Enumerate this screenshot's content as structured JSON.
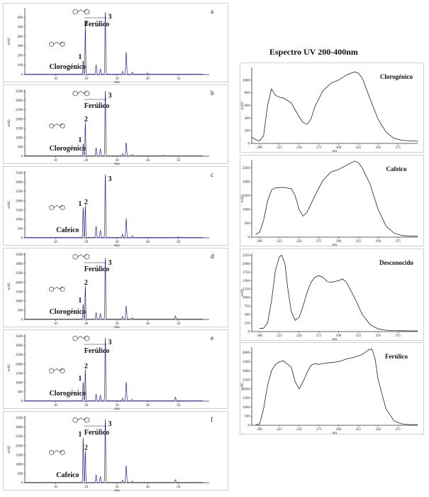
{
  "uv_title": "Espectro UV 200-400nm",
  "chart_data": [
    {
      "type": "line",
      "panel_label": "a",
      "xlabel": "min",
      "ylabel": "mAU",
      "xlim": [
        0,
        60
      ],
      "ylim": [
        0,
        700
      ],
      "x_ticks": [
        10,
        20,
        30,
        40,
        50
      ],
      "y_ticks": [
        0,
        100,
        200,
        300,
        400,
        500,
        600
      ],
      "peaks": [
        {
          "id": "1",
          "x": 19.0,
          "y": 140,
          "name": "Clorogénico"
        },
        {
          "id": "2",
          "x": 19.7,
          "y": 500
        },
        {
          "id": "3",
          "x": 26.2,
          "y": 650,
          "name": "Ferúlico"
        }
      ],
      "minor_peaks": [
        [
          23.2,
          95
        ],
        [
          24.6,
          55
        ],
        [
          33.0,
          230
        ],
        [
          31.8,
          30
        ],
        [
          35.0,
          22
        ],
        [
          40.0,
          12
        ]
      ]
    },
    {
      "type": "line",
      "panel_label": "b",
      "xlabel": "min",
      "ylabel": "mAU",
      "xlim": [
        0,
        60
      ],
      "ylim": [
        0,
        3600
      ],
      "x_ticks": [
        10,
        20,
        30,
        40,
        50
      ],
      "y_ticks": [
        0,
        500,
        1000,
        1500,
        2000,
        2500,
        3000,
        3500
      ],
      "peaks": [
        {
          "id": "1",
          "x": 19.0,
          "y": 650,
          "name": "Clorogénico"
        },
        {
          "id": "2",
          "x": 19.7,
          "y": 1800
        },
        {
          "id": "3",
          "x": 26.2,
          "y": 3500,
          "name": "Ferúlico"
        }
      ],
      "minor_peaks": [
        [
          23.2,
          420
        ],
        [
          24.6,
          380
        ],
        [
          33.0,
          700
        ],
        [
          31.8,
          120
        ],
        [
          35.0,
          80
        ],
        [
          45.0,
          30
        ]
      ]
    },
    {
      "type": "line",
      "panel_label": "c",
      "xlabel": "min",
      "ylabel": "mAU",
      "xlim": [
        0,
        60
      ],
      "ylim": [
        0,
        3600
      ],
      "x_ticks": [
        10,
        20,
        30,
        40,
        50
      ],
      "y_ticks": [
        0,
        500,
        1000,
        1500,
        2000,
        2500,
        3000,
        3500
      ],
      "peaks": [
        {
          "id": "1",
          "x": 19.0,
          "y": 1600,
          "name": "Cafeico"
        },
        {
          "id": "2",
          "x": 19.7,
          "y": 1750
        },
        {
          "id": "3",
          "x": 26.2,
          "y": 3400
        }
      ],
      "minor_peaks": [
        [
          23.2,
          600
        ],
        [
          24.6,
          380
        ],
        [
          33.0,
          1000
        ],
        [
          31.8,
          180
        ],
        [
          35.0,
          100
        ],
        [
          50.0,
          30
        ]
      ]
    },
    {
      "type": "line",
      "panel_label": "d",
      "xlabel": "min",
      "ylabel": "mAU",
      "xlim": [
        0,
        60
      ],
      "ylim": [
        0,
        3600
      ],
      "x_ticks": [
        10,
        20,
        30,
        40,
        50
      ],
      "y_ticks": [
        0,
        500,
        1000,
        1500,
        2000,
        2500,
        3000,
        3500
      ],
      "peaks": [
        {
          "id": "1",
          "x": 19.0,
          "y": 800,
          "name": "Clorogénico"
        },
        {
          "id": "2",
          "x": 19.7,
          "y": 1800
        },
        {
          "id": "3",
          "x": 26.2,
          "y": 3300,
          "name": "Ferúlico"
        }
      ],
      "minor_peaks": [
        [
          23.2,
          350
        ],
        [
          24.6,
          300
        ],
        [
          33.0,
          700
        ],
        [
          31.8,
          150
        ],
        [
          35.0,
          80
        ],
        [
          49.0,
          180
        ]
      ]
    },
    {
      "type": "line",
      "panel_label": "e",
      "xlabel": "min",
      "ylabel": "mAU",
      "xlim": [
        0,
        60
      ],
      "ylim": [
        0,
        3600
      ],
      "x_ticks": [
        10,
        20,
        30,
        40,
        50
      ],
      "y_ticks": [
        0,
        500,
        1000,
        1500,
        2000,
        2500,
        3000,
        3500
      ],
      "peaks": [
        {
          "id": "1",
          "x": 19.0,
          "y": 1000,
          "name": "Clorogénico"
        },
        {
          "id": "2",
          "x": 19.7,
          "y": 1700
        },
        {
          "id": "3",
          "x": 26.2,
          "y": 3400,
          "name": "Ferúlico"
        }
      ],
      "minor_peaks": [
        [
          23.2,
          350
        ],
        [
          24.6,
          300
        ],
        [
          33.0,
          1000
        ],
        [
          31.8,
          150
        ],
        [
          35.0,
          80
        ],
        [
          49.0,
          200
        ]
      ]
    },
    {
      "type": "line",
      "panel_label": "f",
      "xlabel": "min",
      "ylabel": "mAU",
      "xlim": [
        0,
        60
      ],
      "ylim": [
        0,
        3600
      ],
      "x_ticks": [
        10,
        20,
        30,
        40,
        50
      ],
      "y_ticks": [
        0,
        500,
        1000,
        1500,
        2000,
        2500,
        3000,
        3500
      ],
      "peaks": [
        {
          "id": "1",
          "x": 19.0,
          "y": 2400,
          "name": "Cafeico"
        },
        {
          "id": "2",
          "x": 19.7,
          "y": 1700
        },
        {
          "id": "3",
          "x": 26.2,
          "y": 3400,
          "name": "Ferúlico"
        }
      ],
      "minor_peaks": [
        [
          23.2,
          400
        ],
        [
          24.6,
          300
        ],
        [
          33.0,
          900
        ],
        [
          31.8,
          120
        ],
        [
          35.0,
          80
        ],
        [
          49.0,
          150
        ]
      ]
    },
    {
      "type": "line",
      "name": "Clorogénico",
      "xlabel": "nm",
      "ylabel": "mAU",
      "xlim": [
        190,
        400
      ],
      "ylim": [
        0,
        1200
      ],
      "x_ticks": [
        200,
        225,
        250,
        275,
        300,
        325,
        350,
        375
      ],
      "y_ticks": [
        0,
        200,
        400,
        600,
        800,
        1000
      ],
      "x": [
        190,
        195,
        200,
        205,
        210,
        215,
        220,
        225,
        230,
        240,
        250,
        255,
        260,
        265,
        270,
        280,
        290,
        300,
        310,
        320,
        325,
        330,
        340,
        350,
        360,
        370,
        380,
        390,
        400
      ],
      "y": [
        100,
        60,
        40,
        120,
        600,
        860,
        760,
        730,
        720,
        640,
        420,
        330,
        300,
        390,
        580,
        830,
        950,
        1000,
        1080,
        1130,
        1110,
        1030,
        700,
        380,
        180,
        80,
        50,
        40,
        35
      ]
    },
    {
      "type": "line",
      "name": "Cafeico",
      "xlabel": "nm",
      "ylabel": "mAU",
      "xlim": [
        190,
        400
      ],
      "ylim": [
        0,
        2800
      ],
      "x_ticks": [
        200,
        225,
        250,
        275,
        300,
        325,
        350,
        375
      ],
      "y_ticks": [
        0,
        500,
        1000,
        1500,
        2000,
        2500
      ],
      "x": [
        195,
        200,
        205,
        210,
        215,
        220,
        230,
        240,
        245,
        250,
        255,
        260,
        270,
        280,
        290,
        300,
        310,
        320,
        325,
        330,
        340,
        350,
        360,
        370,
        380,
        390,
        400
      ],
      "y": [
        100,
        180,
        600,
        1300,
        1700,
        1780,
        1800,
        1750,
        1500,
        1000,
        760,
        900,
        1500,
        2050,
        2350,
        2450,
        2600,
        2750,
        2700,
        2500,
        1900,
        1000,
        400,
        150,
        60,
        40,
        30
      ]
    },
    {
      "type": "line",
      "name": "Desconocido",
      "xlabel": "nm",
      "ylabel": "mAU",
      "xlim": [
        190,
        400
      ],
      "ylim": [
        0,
        2300
      ],
      "x_ticks": [
        200,
        225,
        250,
        275,
        300,
        325,
        350,
        375
      ],
      "y_ticks": [
        0,
        250,
        500,
        750,
        1000,
        1250,
        1500,
        1750,
        2000,
        2250
      ],
      "x": [
        200,
        205,
        210,
        215,
        220,
        225,
        228,
        232,
        236,
        240,
        245,
        250,
        255,
        260,
        265,
        270,
        275,
        280,
        285,
        290,
        300,
        305,
        310,
        320,
        330,
        340,
        350,
        360,
        370,
        380,
        390,
        400
      ],
      "y": [
        90,
        100,
        250,
        900,
        1800,
        2200,
        2250,
        2000,
        1200,
        600,
        330,
        420,
        750,
        1150,
        1450,
        1600,
        1650,
        1600,
        1480,
        1450,
        1500,
        1550,
        1450,
        1000,
        500,
        200,
        80,
        40,
        30,
        25,
        20,
        20
      ]
    },
    {
      "type": "line",
      "name": "Ferúlico",
      "xlabel": "nm",
      "ylabel": "mAU",
      "xlim": [
        190,
        400
      ],
      "ylim": [
        0,
        4300
      ],
      "x_ticks": [
        200,
        225,
        250,
        275,
        300,
        325,
        350,
        375
      ],
      "y_ticks": [
        0,
        500,
        1000,
        1500,
        2000,
        2500,
        3000,
        3500,
        4000
      ],
      "x": [
        195,
        200,
        205,
        210,
        215,
        220,
        225,
        230,
        240,
        245,
        250,
        255,
        260,
        265,
        270,
        275,
        280,
        290,
        300,
        310,
        320,
        330,
        338,
        342,
        346,
        350,
        360,
        370,
        380,
        390,
        400
      ],
      "y": [
        20,
        80,
        900,
        2200,
        3000,
        3350,
        3500,
        3550,
        3200,
        2400,
        2000,
        2400,
        2900,
        3300,
        3400,
        3350,
        3400,
        3450,
        3500,
        3650,
        3750,
        3900,
        4150,
        4200,
        3700,
        2500,
        900,
        250,
        80,
        40,
        30
      ]
    }
  ]
}
